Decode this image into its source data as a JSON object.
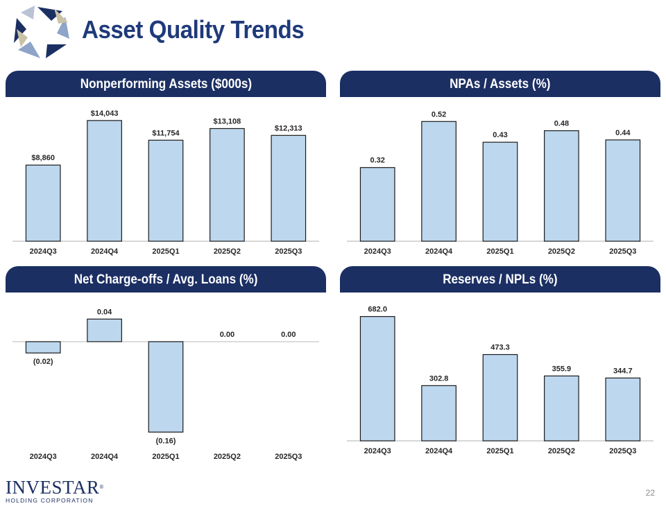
{
  "title": "Asset Quality Trends",
  "brand": {
    "name": "INVESTAR",
    "trademark": "®",
    "subtitle": "HOLDING CORPORATION"
  },
  "page_number": "22",
  "colors": {
    "header_bg": "#1b2f63",
    "bar_fill": "#bdd7ee",
    "bar_stroke": "#1a1a1a",
    "title": "#1f3a7a"
  },
  "chart_data": [
    {
      "type": "bar",
      "title": "Nonperforming Assets ($000s)",
      "categories": [
        "2024Q3",
        "2024Q4",
        "2025Q1",
        "2025Q2",
        "2025Q3"
      ],
      "values": [
        8860,
        14043,
        11754,
        13108,
        12313
      ],
      "labels": [
        "$8,860",
        "$14,043",
        "$11,754",
        "$13,108",
        "$12,313"
      ],
      "ylim": [
        0,
        15000
      ],
      "xlabel": "",
      "ylabel": ""
    },
    {
      "type": "bar",
      "title": "NPAs / Assets (%)",
      "categories": [
        "2024Q3",
        "2024Q4",
        "2025Q1",
        "2025Q2",
        "2025Q3"
      ],
      "values": [
        0.32,
        0.52,
        0.43,
        0.48,
        0.44
      ],
      "labels": [
        "0.32",
        "0.52",
        "0.43",
        "0.48",
        "0.44"
      ],
      "ylim": [
        0,
        0.56
      ],
      "xlabel": "",
      "ylabel": ""
    },
    {
      "type": "bar",
      "title": "Net Charge-offs / Avg. Loans (%)",
      "categories": [
        "2024Q3",
        "2024Q4",
        "2025Q1",
        "2025Q2",
        "2025Q3"
      ],
      "values": [
        -0.02,
        0.04,
        -0.16,
        0.0,
        0.0
      ],
      "labels": [
        "(0.02)",
        "0.04",
        "(0.16)",
        "0.00",
        "0.00"
      ],
      "ylim": [
        -0.2,
        0.06
      ],
      "xlabel": "",
      "ylabel": ""
    },
    {
      "type": "bar",
      "title": "Reserves / NPLs (%)",
      "categories": [
        "2024Q3",
        "2024Q4",
        "2025Q1",
        "2025Q2",
        "2025Q3"
      ],
      "values": [
        682.0,
        302.8,
        473.3,
        355.9,
        344.7
      ],
      "labels": [
        "682.0",
        "302.8",
        "473.3",
        "355.9",
        "344.7"
      ],
      "ylim": [
        0,
        730
      ],
      "xlabel": "",
      "ylabel": ""
    }
  ]
}
